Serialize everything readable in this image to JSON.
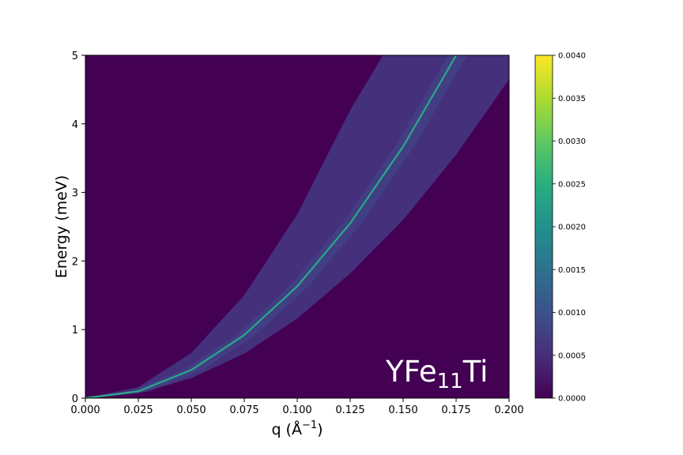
{
  "chart_data": {
    "type": "heatmap",
    "xlabel": "q (Å",
    "xlabel_exponent": "−1",
    "xlabel_close": ")",
    "ylabel": "Energy (meV)",
    "xlim": [
      0.0,
      0.2
    ],
    "ylim": [
      0,
      5
    ],
    "x_ticks": [
      "0.000",
      "0.025",
      "0.050",
      "0.075",
      "0.100",
      "0.125",
      "0.150",
      "0.175",
      "0.200"
    ],
    "y_ticks": [
      "0",
      "1",
      "2",
      "3",
      "4",
      "5"
    ],
    "annotation": {
      "base": "YFe",
      "subscript": "11",
      "suffix": "Ti",
      "color": "#ffffff"
    },
    "colorbar": {
      "colormap": "viridis",
      "range": [
        0.0,
        0.004
      ],
      "ticks": [
        "0.0000",
        "0.0005",
        "0.0010",
        "0.0015",
        "0.0020",
        "0.0025",
        "0.0030",
        "0.0035",
        "0.0040"
      ]
    },
    "dispersion": {
      "description_fields": "E = D*q^2 peak ridge; band edges lower/upper",
      "ridge": [
        [
          0.0,
          0.0
        ],
        [
          0.025,
          0.1
        ],
        [
          0.05,
          0.41
        ],
        [
          0.075,
          0.92
        ],
        [
          0.1,
          1.63
        ],
        [
          0.125,
          2.55
        ],
        [
          0.15,
          3.67
        ],
        [
          0.175,
          5.0
        ]
      ],
      "upper_edge": [
        [
          0.0,
          0.0
        ],
        [
          0.025,
          0.16
        ],
        [
          0.05,
          0.66
        ],
        [
          0.075,
          1.5
        ],
        [
          0.1,
          2.68
        ],
        [
          0.125,
          4.2
        ],
        [
          0.1405,
          5.0
        ]
      ],
      "lower_edge": [
        [
          0.0,
          0.0
        ],
        [
          0.025,
          0.07
        ],
        [
          0.05,
          0.29
        ],
        [
          0.075,
          0.65
        ],
        [
          0.1,
          1.16
        ],
        [
          0.125,
          1.82
        ],
        [
          0.15,
          2.6
        ],
        [
          0.175,
          3.55
        ],
        [
          0.2,
          4.65
        ]
      ],
      "ridge_intensity": 0.0022,
      "band_intensity": 0.0007,
      "background_intensity": 0.0
    }
  }
}
